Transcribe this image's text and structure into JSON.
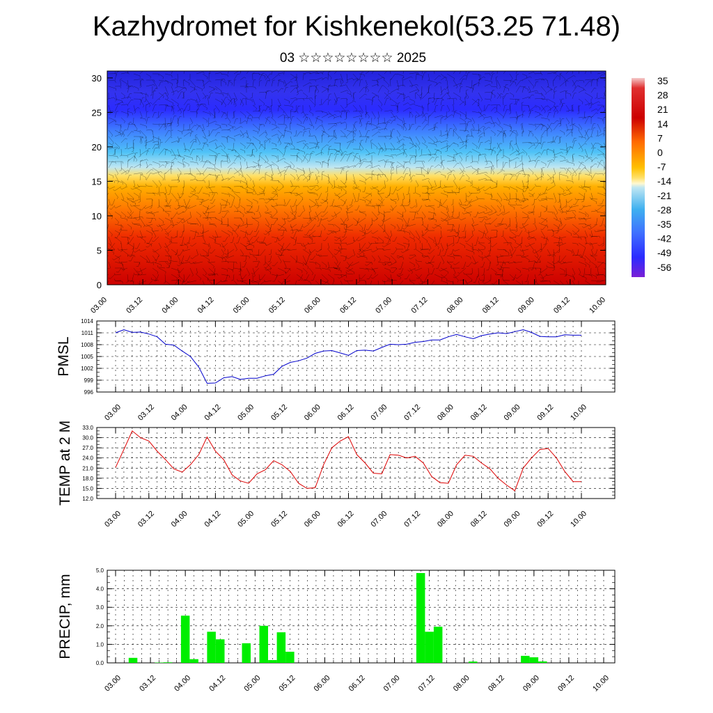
{
  "title": "Kazhydromet for Kishkenekol(53.25 71.48)",
  "subtitle": "03 ☆☆☆☆☆☆☆☆ 2025",
  "chart_data": [
    {
      "type": "heatmap",
      "ylim": [
        0,
        31
      ],
      "yticks": [
        "0",
        "5",
        "10",
        "15",
        "20",
        "25",
        "30"
      ],
      "xticks": [
        "03.00",
        "03.12",
        "04.00",
        "04.12",
        "05.00",
        "05.12",
        "06.00",
        "06.12",
        "07.00",
        "07.12",
        "08.00",
        "08.12",
        "09.00",
        "09.12",
        "10.00"
      ],
      "colorbar_labels": [
        "35",
        "28",
        "21",
        "14",
        "7",
        "0",
        "-7",
        "-14",
        "-21",
        "-28",
        "-35",
        "-42",
        "-49",
        "-56"
      ],
      "colors": {
        "hot": "#cc0000",
        "warm": "#ff8c00",
        "mid": "#ffd700",
        "cool": "#4fc3f7",
        "cold": "#3333ff",
        "coldest": "#7a1fd6"
      }
    },
    {
      "type": "line",
      "ylabel": "PMSL",
      "ylim": [
        996,
        1014
      ],
      "yticks": [
        "996",
        "999",
        "1002",
        "1005",
        "1008",
        "1011",
        "1014"
      ],
      "xticks": [
        "03.00",
        "03.12",
        "04.00",
        "04.12",
        "05.00",
        "05.12",
        "06.00",
        "06.12",
        "07.00",
        "07.12",
        "08.00",
        "08.12",
        "09.00",
        "09.12",
        "10.00"
      ],
      "color": "#0000cc",
      "values": [
        1011.0,
        1011.8,
        1011.1,
        1011.2,
        1010.7,
        1010.0,
        1008.1,
        1007.9,
        1006.4,
        1005.0,
        1002.3,
        998.2,
        998.3,
        999.6,
        999.9,
        999.2,
        999.5,
        999.5,
        1000.1,
        1000.5,
        1002.5,
        1003.5,
        1003.9,
        1004.6,
        1005.8,
        1006.4,
        1006.5,
        1005.9,
        1005.3,
        1006.5,
        1006.6,
        1006.4,
        1007.3,
        1008.1,
        1008.0,
        1008.1,
        1008.6,
        1008.8,
        1009.2,
        1009.2,
        1010.0,
        1010.6,
        1010.0,
        1009.5,
        1010.3,
        1010.7,
        1011.0,
        1010.8,
        1011.3,
        1011.8,
        1011.1,
        1010.1,
        1010.0,
        1010.0,
        1010.5,
        1010.4,
        1010.4
      ]
    },
    {
      "type": "line",
      "ylabel": "TEMP at 2 M",
      "ylim": [
        12.0,
        33.0
      ],
      "yticks": [
        "12.0",
        "15.0",
        "18.0",
        "21.0",
        "24.0",
        "27.0",
        "30.0",
        "33.0"
      ],
      "xticks": [
        "03.00",
        "03.12",
        "04.00",
        "04.12",
        "05.00",
        "05.12",
        "06.00",
        "06.12",
        "07.00",
        "07.12",
        "08.00",
        "08.12",
        "09.00",
        "09.12",
        "10.00"
      ],
      "color": "#dd0000",
      "values": [
        21.2,
        26.5,
        32.0,
        30.0,
        29.0,
        26.0,
        23.5,
        20.8,
        19.8,
        22.0,
        25.0,
        30.2,
        26.0,
        23.5,
        19.0,
        17.2,
        16.5,
        19.3,
        20.5,
        23.2,
        22.0,
        20.0,
        16.5,
        15.0,
        15.2,
        22.0,
        27.0,
        29.0,
        30.3,
        25.0,
        22.5,
        19.5,
        19.3,
        25.0,
        24.8,
        24.0,
        24.5,
        22.5,
        18.5,
        16.7,
        16.5,
        22.0,
        24.8,
        24.5,
        22.5,
        20.8,
        18.0,
        16.0,
        14.3,
        21.0,
        24.0,
        26.5,
        26.8,
        24.0,
        20.0,
        17.0,
        17.0
      ]
    },
    {
      "type": "bar",
      "ylabel": "PRECIP, mm",
      "ylim": [
        0,
        5.0
      ],
      "yticks": [
        "0.0",
        "1.0",
        "2.0",
        "3.0",
        "4.0",
        "5.0"
      ],
      "xticks": [
        "03.00",
        "03.12",
        "04.00",
        "04.12",
        "05.00",
        "05.12",
        "06.00",
        "06.12",
        "07.00",
        "07.12",
        "08.00",
        "08.12",
        "09.00",
        "09.12",
        "10.00"
      ],
      "color": "#00ee00",
      "values": [
        0,
        0,
        0.27,
        0,
        0,
        0.02,
        0.03,
        0,
        2.55,
        0.2,
        0,
        1.68,
        1.27,
        0,
        0,
        1.06,
        0,
        2.0,
        0.15,
        1.65,
        0.6,
        0,
        0,
        0,
        0,
        0,
        0,
        0,
        0,
        0,
        0,
        0,
        0,
        0,
        0,
        4.85,
        1.68,
        1.95,
        0,
        0,
        0,
        0.07,
        0,
        0,
        0,
        0,
        0,
        0.38,
        0.3,
        0.08,
        0,
        0,
        0,
        0,
        0,
        0,
        0
      ]
    }
  ]
}
